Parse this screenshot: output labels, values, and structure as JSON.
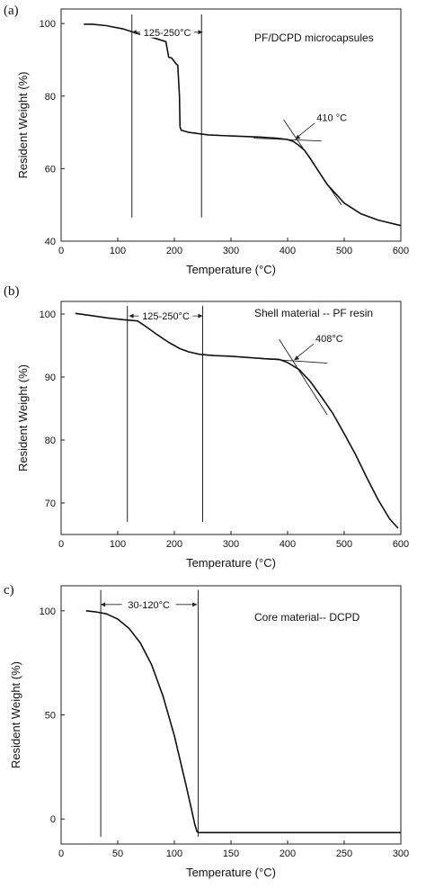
{
  "chart_data": [
    {
      "panel_label": "(a)",
      "type": "line",
      "title": "PF/DCPD microcapsules",
      "xlabel": "Temperature (°C)",
      "ylabel": "Resident Weight (%)",
      "xlim": [
        0,
        600
      ],
      "ylim": [
        40,
        104
      ],
      "xticks": [
        0,
        100,
        200,
        300,
        400,
        500,
        600
      ],
      "yticks": [
        40,
        60,
        80,
        100
      ],
      "series": [
        {
          "x": [
            40,
            55,
            80,
            110,
            140,
            165,
            185,
            190,
            195,
            203,
            206,
            209,
            210,
            212,
            225,
            260,
            300,
            350,
            380,
            400,
            410,
            420,
            430,
            440,
            450,
            470,
            500,
            530,
            560,
            600
          ],
          "y": [
            99.8,
            99.8,
            99.4,
            98.5,
            97.0,
            96.0,
            95.0,
            90.7,
            90.5,
            88.9,
            88.5,
            80.0,
            71.5,
            70.6,
            70.0,
            69.3,
            69.0,
            68.7,
            68.4,
            68.0,
            67.5,
            66.4,
            65.0,
            62.8,
            60.4,
            55.6,
            50.5,
            47.5,
            45.8,
            44.3
          ]
        }
      ],
      "annotations": [
        {
          "text": "125-250°C",
          "type": "range",
          "x_from": 125,
          "x_to": 250,
          "y": 97.6
        },
        {
          "text": "410 °C",
          "type": "onset",
          "x": 410,
          "y": 67.6
        }
      ],
      "marker_lines": [
        {
          "x": 125,
          "y_from": 46.5,
          "y_to": 102.5
        },
        {
          "x": 248,
          "y_from": 46.5,
          "y_to": 102.5
        }
      ],
      "tangents": [
        {
          "x1": 340,
          "y1": 68.4,
          "x2": 460,
          "y2": 67.6
        },
        {
          "x1": 393,
          "y1": 73.5,
          "x2": 495,
          "y2": 50.0
        }
      ]
    },
    {
      "panel_label": "(b)",
      "type": "line",
      "title": "Shell material -- PF resin",
      "xlabel": "Temperature (°C)",
      "ylabel": "Resident Weight (%)",
      "xlim": [
        0,
        600
      ],
      "ylim": [
        65,
        102
      ],
      "xticks": [
        0,
        100,
        200,
        300,
        400,
        500,
        600
      ],
      "yticks": [
        70,
        80,
        90,
        100
      ],
      "series": [
        {
          "x": [
            25,
            50,
            80,
            110,
            135,
            150,
            170,
            190,
            210,
            225,
            245,
            270,
            300,
            330,
            360,
            385,
            400,
            420,
            440,
            460,
            480,
            500,
            520,
            540,
            560,
            580,
            595
          ],
          "y": [
            100.1,
            99.8,
            99.4,
            99.1,
            98.9,
            98.0,
            96.7,
            95.5,
            94.5,
            94.0,
            93.6,
            93.4,
            93.3,
            93.1,
            92.9,
            92.8,
            92.3,
            91.2,
            89.3,
            86.8,
            84.2,
            81.0,
            77.7,
            74.0,
            70.5,
            67.5,
            66.0
          ]
        }
      ],
      "annotations": [
        {
          "text": "125-250°C",
          "type": "range",
          "x_from": 120,
          "x_to": 250,
          "y": 99.7
        },
        {
          "text": "408°C",
          "type": "onset",
          "x": 408,
          "y": 92.4
        }
      ],
      "marker_lines": [
        {
          "x": 117,
          "y_from": 67.0,
          "y_to": 101.3
        },
        {
          "x": 250,
          "y_from": 67.0,
          "y_to": 101.3
        }
      ],
      "tangents": [
        {
          "x1": 355,
          "y1": 92.9,
          "x2": 470,
          "y2": 92.2
        },
        {
          "x1": 385,
          "y1": 96.0,
          "x2": 470,
          "y2": 84.0
        }
      ]
    },
    {
      "panel_label": "c)",
      "type": "line",
      "title": "Core material-- DCPD",
      "xlabel": "Temperature (°C)",
      "ylabel": "Resident Weight (%)",
      "xlim": [
        0,
        300
      ],
      "ylim": [
        -12,
        112
      ],
      "xticks": [
        0,
        50,
        100,
        150,
        200,
        250,
        300
      ],
      "yticks": [
        0,
        50,
        100
      ],
      "series": [
        {
          "x": [
            22,
            30,
            40,
            50,
            60,
            70,
            80,
            90,
            100,
            110,
            115,
            118,
            120,
            121,
            130,
            150,
            200,
            250,
            300
          ],
          "y": [
            100,
            99.5,
            98.5,
            96.0,
            91.5,
            84.5,
            74.0,
            59.0,
            40.0,
            17.0,
            5.0,
            -2.5,
            -6.0,
            -6.5,
            -6.5,
            -6.5,
            -6.5,
            -6.5,
            -6.5
          ]
        }
      ],
      "annotations": [
        {
          "text": "30-120°C",
          "type": "range",
          "x_from": 35,
          "x_to": 120,
          "y": 103
        }
      ],
      "marker_lines": [
        {
          "x": 35,
          "y_from": -8.5,
          "y_to": 110
        },
        {
          "x": 121,
          "y_from": -8.5,
          "y_to": 110
        }
      ],
      "tangents": []
    }
  ]
}
